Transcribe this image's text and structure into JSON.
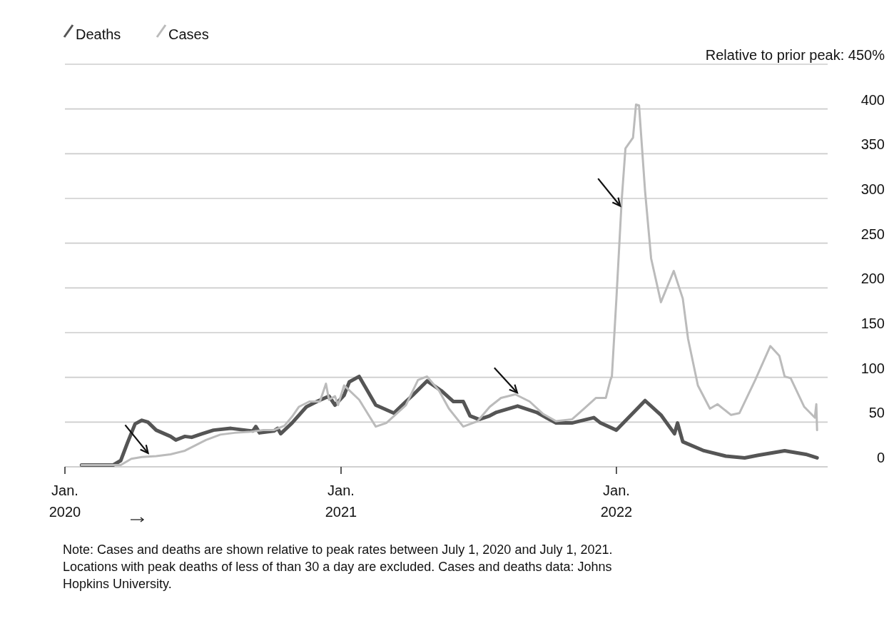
{
  "chart_data": {
    "type": "line",
    "legend": "top left",
    "grid": "y",
    "line_style": "solid",
    "marker": "none",
    "xlim": [
      "2020-01-01",
      "2022-10-08"
    ],
    "xticks": [
      {
        "value": "2020-01-01",
        "label": "Jan.\n2020"
      },
      {
        "value": "2021-01-01",
        "label": "Jan.\n2021"
      },
      {
        "value": "2022-01-01",
        "label": "Jan.\n2022"
      }
    ],
    "ylim": [
      0,
      450
    ],
    "yticks": [
      0,
      50,
      100,
      150,
      200,
      250,
      300,
      350,
      400,
      {
        "value": 450,
        "label": "Relative to prior peak: 450%"
      }
    ],
    "series": [
      {
        "name": "Deaths",
        "color": "#555555",
        "x": [
          "2020-01-23",
          "2020-03-05",
          "2020-03-15",
          "2020-03-24",
          "2020-04-03",
          "2020-04-12",
          "2020-04-20",
          "2020-05-01",
          "2020-05-20",
          "2020-05-27",
          "2020-06-08",
          "2020-06-17",
          "2020-07-01",
          "2020-07-16",
          "2020-08-08",
          "2020-08-27",
          "2020-09-06",
          "2020-09-10",
          "2020-09-15",
          "2020-10-04",
          "2020-10-09",
          "2020-10-13",
          "2020-10-28",
          "2020-11-16",
          "2020-11-30",
          "2020-12-16",
          "2020-12-24",
          "2021-01-05",
          "2021-01-12",
          "2021-01-25",
          "2021-02-16",
          "2021-03-12",
          "2021-03-28",
          "2021-04-06",
          "2021-04-25",
          "2021-05-14",
          "2021-05-30",
          "2021-06-12",
          "2021-06-21",
          "2021-07-03",
          "2021-07-17",
          "2021-07-26",
          "2021-08-23",
          "2021-09-17",
          "2021-10-13",
          "2021-11-03",
          "2021-12-02",
          "2021-12-11",
          "2022-01-01",
          "2022-02-08",
          "2022-03-01",
          "2022-03-19",
          "2022-03-23",
          "2022-03-30",
          "2022-04-27",
          "2022-05-26",
          "2022-06-20",
          "2022-07-08",
          "2022-08-12",
          "2022-09-09",
          "2022-09-24"
        ],
        "values": [
          2,
          2,
          7,
          27,
          48,
          52,
          50,
          41,
          34,
          30,
          34,
          33,
          37,
          41,
          43,
          41,
          40,
          45,
          38,
          40,
          43,
          37,
          49,
          67,
          73,
          79,
          69,
          80,
          95,
          101,
          69,
          60,
          73,
          80,
          96,
          85,
          73,
          73,
          57,
          53,
          57,
          61,
          68,
          61,
          49,
          49,
          55,
          49,
          41,
          74,
          58,
          37,
          49,
          28,
          18,
          12,
          10,
          13,
          18,
          14,
          10
        ]
      },
      {
        "name": "Cases",
        "color": "#bbbbbb",
        "x": [
          "2020-01-23",
          "2020-03-15",
          "2020-03-29",
          "2020-04-12",
          "2020-05-01",
          "2020-05-20",
          "2020-06-08",
          "2020-07-06",
          "2020-07-25",
          "2020-08-13",
          "2020-09-01",
          "2020-09-20",
          "2020-10-04",
          "2020-10-18",
          "2020-10-28",
          "2020-11-06",
          "2020-11-20",
          "2020-12-04",
          "2020-12-12",
          "2020-12-16",
          "2020-12-24",
          "2020-12-28",
          "2021-01-05",
          "2021-01-25",
          "2021-02-16",
          "2021-03-02",
          "2021-03-28",
          "2021-04-13",
          "2021-04-25",
          "2021-05-11",
          "2021-05-24",
          "2021-06-12",
          "2021-07-01",
          "2021-07-17",
          "2021-08-01",
          "2021-08-20",
          "2021-09-08",
          "2021-09-26",
          "2021-10-13",
          "2021-11-03",
          "2021-11-19",
          "2021-12-05",
          "2021-12-18",
          "2021-12-24",
          "2021-12-26",
          "2022-01-01",
          "2022-01-08",
          "2022-01-13",
          "2022-01-23",
          "2022-01-27",
          "2022-01-31",
          "2022-02-08",
          "2022-02-16",
          "2022-03-01",
          "2022-03-18",
          "2022-03-30",
          "2022-04-06",
          "2022-04-19",
          "2022-05-05",
          "2022-05-15",
          "2022-06-02",
          "2022-06-13",
          "2022-07-04",
          "2022-07-24",
          "2022-08-05",
          "2022-08-12",
          "2022-08-20",
          "2022-09-07",
          "2022-09-21",
          "2022-09-23",
          "2022-09-24"
        ],
        "values": [
          2,
          2,
          9,
          11,
          12,
          14,
          18,
          30,
          36,
          38,
          39,
          41,
          41,
          46,
          56,
          67,
          73,
          73,
          93,
          75,
          79,
          69,
          91,
          75,
          45,
          49,
          69,
          97,
          101,
          85,
          65,
          45,
          51,
          67,
          77,
          81,
          73,
          59,
          51,
          53,
          65,
          77,
          77,
          97,
          101,
          188,
          298,
          356,
          368,
          405,
          404,
          308,
          233,
          184,
          219,
          188,
          143,
          91,
          65,
          70,
          58,
          60,
          97,
          135,
          124,
          101,
          99,
          67,
          55,
          70,
          41
        ]
      }
    ],
    "annotations": [
      "Note: Cases and deaths are shown relative to peak rates between July 1, 2020 and July 1, 2021. Locations with peak deaths of less of than 30 a day are excluded. Cases and deaths data: Johns Hopkins University."
    ]
  }
}
